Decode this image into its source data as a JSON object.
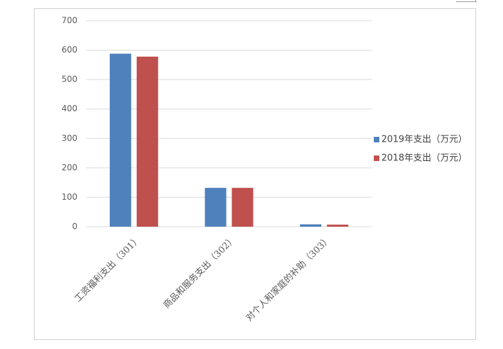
{
  "chart_data": {
    "type": "bar",
    "categories": [
      "工资福利支出（301）",
      "商品和服务支出（302）",
      "对个人和家庭的补助（303）"
    ],
    "series": [
      {
        "name": "2019年支出（万元）",
        "color": "#4f81bd",
        "values": [
          588,
          132,
          8
        ]
      },
      {
        "name": "2018年支出（万元）",
        "color": "#c0504d",
        "values": [
          578,
          132,
          7
        ]
      }
    ],
    "ylim": [
      0,
      700
    ],
    "yticks": [
      0,
      100,
      200,
      300,
      400,
      500,
      600,
      700
    ],
    "grid": true,
    "legend": "right"
  }
}
